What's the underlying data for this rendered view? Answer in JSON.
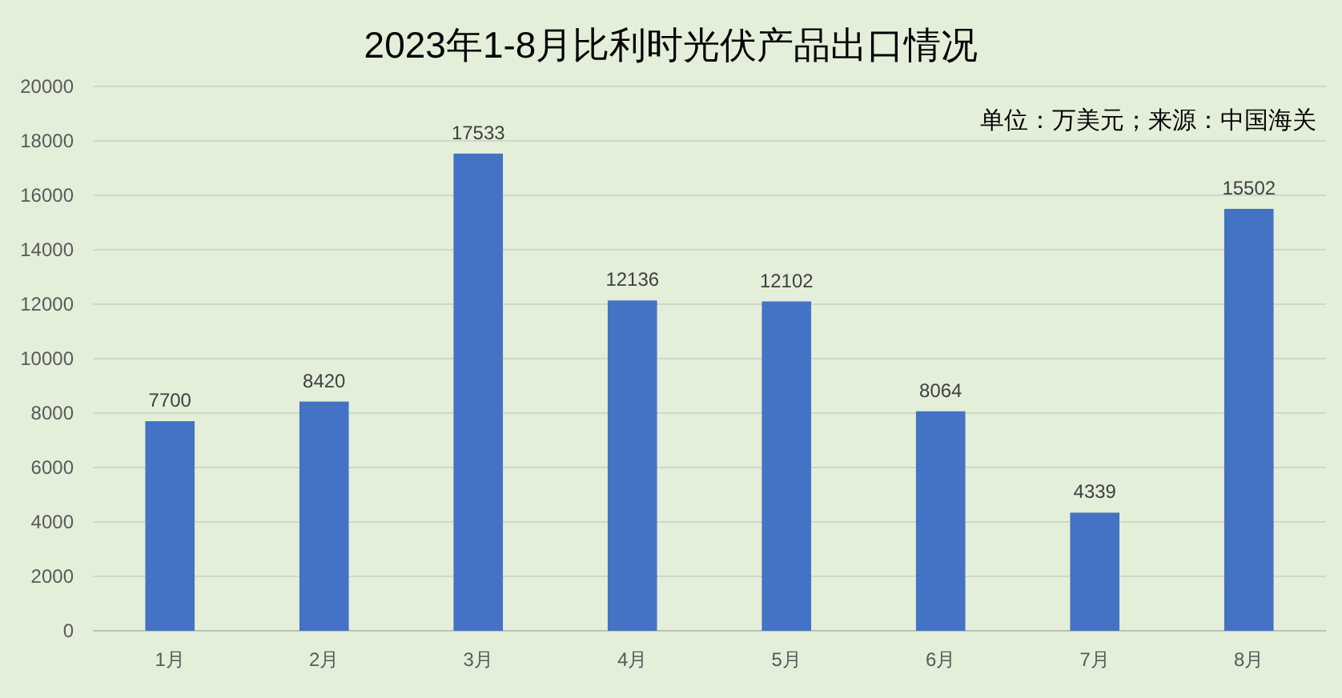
{
  "chart_data": {
    "type": "bar",
    "title": "2023年1-8月比利时光伏产品出口情况",
    "annotations": [
      "单位：万美元；来源：中国海关"
    ],
    "categories": [
      "1月",
      "2月",
      "3月",
      "4月",
      "5月",
      "6月",
      "7月",
      "8月"
    ],
    "values": [
      7700,
      8420,
      17533,
      12136,
      12102,
      8064,
      4339,
      15502
    ],
    "color": "#4472c4",
    "ylim": [
      0,
      20000
    ],
    "yticks": [
      0,
      2000,
      4000,
      6000,
      8000,
      10000,
      12000,
      14000,
      16000,
      18000,
      20000
    ],
    "grid": "y",
    "data_labels": true
  }
}
